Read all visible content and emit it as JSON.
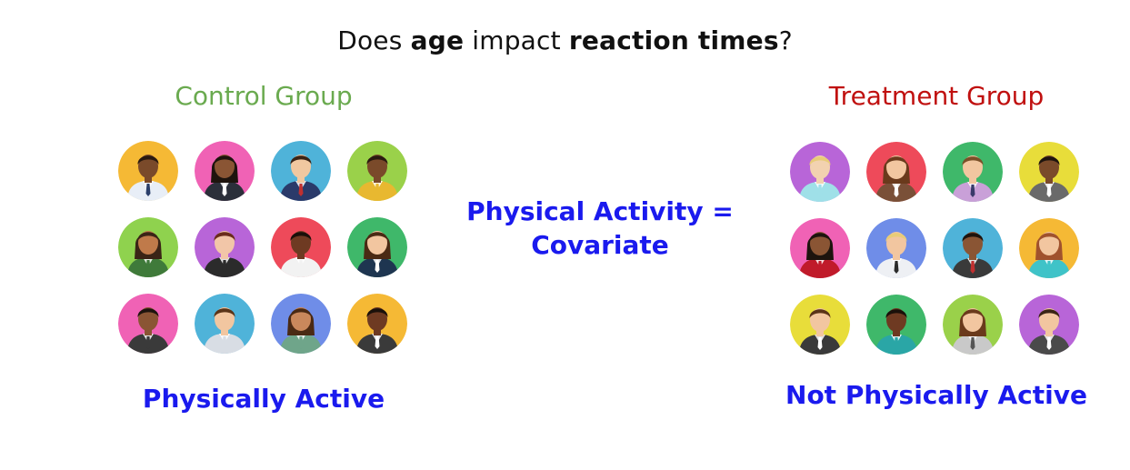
{
  "title": {
    "part1": "Does ",
    "part2": "age",
    "part3": " impact ",
    "part4": "reaction times",
    "part5": "?"
  },
  "control": {
    "heading": "Control Group",
    "label": "Physically Active",
    "heading_color": "#6aaa4f",
    "avatars": [
      {
        "bg": "#f5b935",
        "skin": "#7a4a2a",
        "hair": "#2a1a10",
        "shirt": "#e8eef7",
        "tie": "#2a3f6b"
      },
      {
        "bg": "#f062b5",
        "skin": "#8a5534",
        "hair": "#1e140e",
        "shirt": "#2b2f3a",
        "tie": "#ffffff"
      },
      {
        "bg": "#4fb3d9",
        "skin": "#f0c8a0",
        "hair": "#3a2416",
        "shirt": "#2a3a6a",
        "tie": "#c03030"
      },
      {
        "bg": "#9ad14a",
        "skin": "#7a4a2a",
        "hair": "#2a1a10",
        "shirt": "#e8b830",
        "tie": "#e8b830"
      },
      {
        "bg": "#8fd24e",
        "skin": "#c07a4a",
        "hair": "#3a2416",
        "shirt": "#3f7a3a",
        "tie": "#3f7a3a"
      },
      {
        "bg": "#b865d8",
        "skin": "#f2c6a8",
        "hair": "#6a2c1c",
        "shirt": "#2b2b2b",
        "tie": "#2b2b2b"
      },
      {
        "bg": "#ee4a5a",
        "skin": "#6e3a22",
        "hair": "#1a100a",
        "shirt": "#f2f2f2",
        "tie": "#f2f2f2"
      },
      {
        "bg": "#3fb86a",
        "skin": "#f2c6a0",
        "hair": "#4a2a14",
        "shirt": "#1e3550",
        "tie": "#ffffff"
      },
      {
        "bg": "#f062b5",
        "skin": "#8a5534",
        "hair": "#1e140e",
        "shirt": "#3a3a3a",
        "tie": "#3a3a3a"
      },
      {
        "bg": "#4fb3d9",
        "skin": "#f2c6a0",
        "hair": "#5a3418",
        "shirt": "#d8dde4",
        "tie": "#d8dde4"
      },
      {
        "bg": "#6f8de8",
        "skin": "#c9885c",
        "hair": "#4a2a14",
        "shirt": "#6fa58a",
        "tie": "#6fa58a"
      },
      {
        "bg": "#f5b935",
        "skin": "#6e3a22",
        "hair": "#1a100a",
        "shirt": "#3a3a3a",
        "tie": "#ffffff"
      }
    ]
  },
  "treatment": {
    "heading": "Treatment Group",
    "label": "Not Physically Active",
    "heading_color": "#c0100f",
    "avatars": [
      {
        "bg": "#b865d8",
        "skin": "#f2d2b0",
        "hair": "#e8cc78",
        "shirt": "#9fe0e8",
        "tie": "#9fe0e8"
      },
      {
        "bg": "#ee4a5a",
        "skin": "#f2c6a0",
        "hair": "#6a3a1c",
        "shirt": "#7a5038",
        "tie": "#ffffff"
      },
      {
        "bg": "#3fb86a",
        "skin": "#f2c6a0",
        "hair": "#7a5028",
        "shirt": "#c9a0d8",
        "tie": "#3a3a6a"
      },
      {
        "bg": "#e8dd3a",
        "skin": "#7a4a2a",
        "hair": "#1e140e",
        "shirt": "#6a6a6a",
        "tie": "#ffffff"
      },
      {
        "bg": "#f062b5",
        "skin": "#8a5534",
        "hair": "#1e140e",
        "shirt": "#c01a2a",
        "tie": "#c01a2a"
      },
      {
        "bg": "#6f8de8",
        "skin": "#f2c6a0",
        "hair": "#e8cc78",
        "shirt": "#eef0f4",
        "tie": "#2b2b2b"
      },
      {
        "bg": "#4fb3d9",
        "skin": "#8a5534",
        "hair": "#1e140e",
        "shirt": "#3a3a3a",
        "tie": "#c03030"
      },
      {
        "bg": "#f5b935",
        "skin": "#f2c6a0",
        "hair": "#a0522d",
        "shirt": "#3fc3c8",
        "tie": "#3fc3c8"
      },
      {
        "bg": "#e8dd3a",
        "skin": "#f2c6a0",
        "hair": "#5a3418",
        "shirt": "#3a3a3a",
        "tie": "#ffffff"
      },
      {
        "bg": "#3fb86a",
        "skin": "#6e3a22",
        "hair": "#1a100a",
        "shirt": "#2aa6a6",
        "tie": "#2aa6a6"
      },
      {
        "bg": "#9ad14a",
        "skin": "#f2c6a0",
        "hair": "#6a3a1c",
        "shirt": "#c9c9c9",
        "tie": "#555555"
      },
      {
        "bg": "#b865d8",
        "skin": "#f2c6a0",
        "hair": "#3a2416",
        "shirt": "#4a4a4a",
        "tie": "#ffffff"
      }
    ]
  },
  "covariate": {
    "line1": "Physical Activity =",
    "line2": "Covariate",
    "color": "#1a1aee"
  }
}
